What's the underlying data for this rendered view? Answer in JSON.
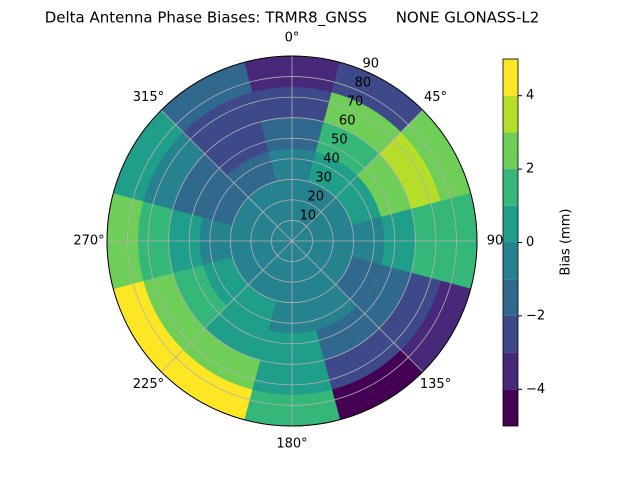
{
  "chart_data": {
    "type": "polar-contour",
    "title": "Delta Antenna Phase Biases: TRMR8_GNSS      NONE GLONASS-L2",
    "colorbar_label": "Bias (mm)",
    "azimuth": [
      0,
      30,
      60,
      90,
      120,
      150,
      180,
      210,
      240,
      270,
      300,
      330
    ],
    "radius_edges": [
      0,
      15,
      30,
      45,
      60,
      75,
      90
    ],
    "values": [
      [
        -0.5,
        -0.5,
        -0.5,
        -1.5,
        -2.5,
        -3.5
      ],
      [
        -0.5,
        -0.5,
        0.5,
        1.5,
        2.5,
        -2.5
      ],
      [
        -0.5,
        -0.5,
        0.5,
        2.5,
        3.5,
        2.5
      ],
      [
        -0.5,
        -0.5,
        -0.5,
        0.5,
        1.5,
        1.5
      ],
      [
        -0.5,
        -0.5,
        -1.5,
        -1.5,
        -2.5,
        -3.5
      ],
      [
        -0.5,
        -0.5,
        -0.5,
        -1.5,
        -2.5,
        -4.5
      ],
      [
        -0.5,
        -0.5,
        -0.5,
        0.5,
        0.5,
        1.5
      ],
      [
        -0.5,
        -0.5,
        0.5,
        0.5,
        2.5,
        4.5
      ],
      [
        -0.5,
        -0.5,
        0.5,
        1.5,
        2.5,
        4.5
      ],
      [
        -0.5,
        -0.5,
        -0.5,
        0.5,
        1.5,
        2.5
      ],
      [
        -0.5,
        -0.5,
        -1.5,
        -1.5,
        -0.5,
        0.5
      ],
      [
        -0.5,
        -0.5,
        -1.5,
        -2.5,
        -2.5,
        -1.5
      ]
    ],
    "levels": [
      -5,
      -4,
      -3,
      -2,
      -1,
      0,
      1,
      2,
      3,
      4,
      5
    ],
    "colors": [
      "#440154",
      "#482878",
      "#3e4989",
      "#31688e",
      "#26828e",
      "#1f9e89",
      "#35b779",
      "#6ece58",
      "#b5de2b",
      "#fde725"
    ],
    "rlim": [
      0,
      90
    ],
    "rticks": [
      10,
      20,
      30,
      40,
      50,
      60,
      70,
      80,
      90
    ],
    "thetaticks": [
      {
        "value": 0,
        "label": "0°"
      },
      {
        "value": 45,
        "label": "45°"
      },
      {
        "value": 90,
        "label": "90"
      },
      {
        "value": 135,
        "label": "135°"
      },
      {
        "value": 180,
        "label": "180°"
      },
      {
        "value": 225,
        "label": "225°"
      },
      {
        "value": 270,
        "label": "270°"
      },
      {
        "value": 315,
        "label": "315°"
      }
    ],
    "clim": [
      -5,
      5
    ],
    "cticks": [
      {
        "value": -4,
        "label": "−4"
      },
      {
        "value": -2,
        "label": "−2"
      },
      0,
      2,
      4
    ],
    "grid": true
  }
}
